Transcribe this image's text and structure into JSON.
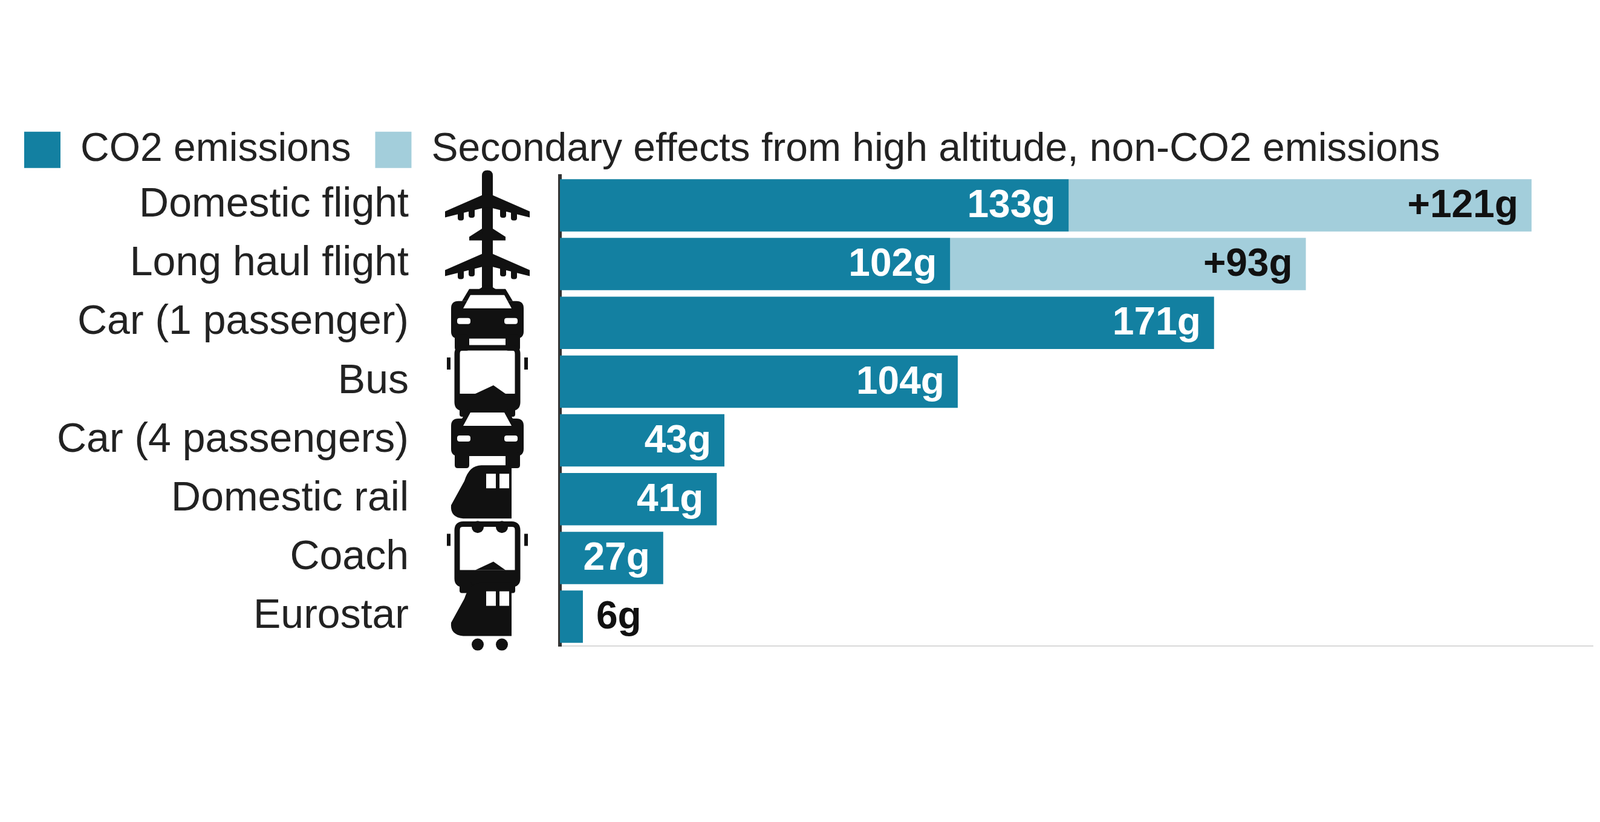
{
  "chart_data": {
    "type": "bar",
    "orientation": "horizontal",
    "stacked": true,
    "data_labels": true,
    "tick_labels": "y",
    "grid": false,
    "legend": "top-left",
    "xlim": [
      0,
      270
    ],
    "categories": [
      "Domestic flight",
      "Long haul flight",
      "Car (1 passenger)",
      "Bus",
      "Car (4 passengers)",
      "Domestic rail",
      "Coach",
      "Eurostar"
    ],
    "series": [
      {
        "name": "CO2 emissions",
        "color": "#1380a1",
        "values": [
          133,
          102,
          171,
          104,
          43,
          41,
          27,
          6
        ],
        "value_labels": [
          "133g",
          "102g",
          "171g",
          "104g",
          "43g",
          "41g",
          "27g",
          "6g"
        ]
      },
      {
        "name": "Secondary effects from high altitude, non-CO2 emissions",
        "color": "#a3cedb",
        "values": [
          121,
          93,
          null,
          null,
          null,
          null,
          null,
          null
        ],
        "value_labels": [
          "+121g",
          "+93g",
          null,
          null,
          null,
          null,
          null,
          null
        ]
      }
    ]
  }
}
